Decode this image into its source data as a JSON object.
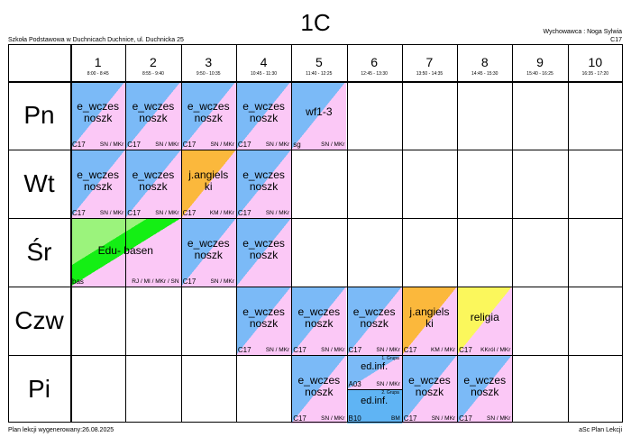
{
  "header": {
    "class_name": "1C",
    "school": "Szkoła Podstawowa w Duchnicach Duchnice, ul. Duchnicka 25",
    "teacher_label": "Wychowawca : Noga Sylwia",
    "room": "C17"
  },
  "footer": {
    "generated": "Plan lekcji wygenerowany:26.08.2025",
    "software": "aSc Plan Lekcji"
  },
  "periods": [
    {
      "num": "1",
      "time": "8:00 - 8:45"
    },
    {
      "num": "2",
      "time": "8:55 - 9:40"
    },
    {
      "num": "3",
      "time": "9:50 - 10:35"
    },
    {
      "num": "4",
      "time": "10:45 - 11:30"
    },
    {
      "num": "5",
      "time": "11:40 - 12:25"
    },
    {
      "num": "6",
      "time": "12:45 - 13:30"
    },
    {
      "num": "7",
      "time": "13:50 - 14:35"
    },
    {
      "num": "8",
      "time": "14:45 - 15:30"
    },
    {
      "num": "9",
      "time": "15:40 - 16:25"
    },
    {
      "num": "10",
      "time": "16:35 - 17:20"
    }
  ],
  "days": [
    "Pn",
    "Wt",
    "Śr",
    "Czw",
    "Pi"
  ],
  "colors": {
    "blue": "#7bbaf7",
    "pink": "#fbc8f6",
    "orange": "#fbb83c",
    "green_light": "#9bf37c",
    "green_bright": "#14ef14",
    "yellow": "#fbf75c",
    "solid_blue": "#5fb4f4"
  },
  "lessons": [
    {
      "day": 0,
      "period": 0,
      "subject": "e_wczes noszk",
      "room": "C17",
      "teachers": "SN / MKr",
      "color": "blue"
    },
    {
      "day": 0,
      "period": 1,
      "subject": "e_wczes noszk",
      "room": "C17",
      "teachers": "SN / MKr",
      "color": "blue"
    },
    {
      "day": 0,
      "period": 2,
      "subject": "e_wczes noszk",
      "room": "C17",
      "teachers": "SN / MKr",
      "color": "blue"
    },
    {
      "day": 0,
      "period": 3,
      "subject": "e_wczes noszk",
      "room": "C17",
      "teachers": "SN / MKr",
      "color": "blue"
    },
    {
      "day": 0,
      "period": 4,
      "subject": "wf1-3",
      "room": "sg",
      "teachers": "SN / MKr",
      "color": "blue"
    },
    {
      "day": 1,
      "period": 0,
      "subject": "e_wczes noszk",
      "room": "C17",
      "teachers": "SN / MKr",
      "color": "blue"
    },
    {
      "day": 1,
      "period": 1,
      "subject": "e_wczes noszk",
      "room": "C17",
      "teachers": "SN / MKr",
      "color": "blue"
    },
    {
      "day": 1,
      "period": 2,
      "subject": "j.angiels ki",
      "room": "C17",
      "teachers": "KM / MKr",
      "color": "orange"
    },
    {
      "day": 1,
      "period": 3,
      "subject": "e_wczes noszk",
      "room": "C17",
      "teachers": "SN / MKr",
      "color": "blue"
    },
    {
      "day": 2,
      "period": 0,
      "span": 2,
      "subject": "Edu- basen",
      "room": "bas",
      "teachers": "RJ / MI / MKr / SN",
      "color": "green"
    },
    {
      "day": 2,
      "period": 2,
      "subject": "e_wczes noszk",
      "room": "C17",
      "teachers": "SN / MKr",
      "color": "blue"
    },
    {
      "day": 2,
      "period": 3,
      "subject": "e_wczes noszk",
      "room": "",
      "teachers": "",
      "color": "blue"
    },
    {
      "day": 3,
      "period": 3,
      "subject": "e_wczes noszk",
      "room": "C17",
      "teachers": "SN / MKr",
      "color": "blue"
    },
    {
      "day": 3,
      "period": 4,
      "subject": "e_wczes noszk",
      "room": "C17",
      "teachers": "SN / MKr",
      "color": "blue"
    },
    {
      "day": 3,
      "period": 5,
      "subject": "e_wczes noszk",
      "room": "C17",
      "teachers": "SN / MKr",
      "color": "blue"
    },
    {
      "day": 3,
      "period": 6,
      "subject": "j.angiels ki",
      "room": "C17",
      "teachers": "KM / MKr",
      "color": "orange"
    },
    {
      "day": 3,
      "period": 7,
      "subject": "religia",
      "room": "C17",
      "teachers": "KKról / MKr",
      "color": "yellow"
    },
    {
      "day": 4,
      "period": 4,
      "subject": "e_wczes noszk",
      "room": "C17",
      "teachers": "SN / MKr",
      "color": "blue"
    },
    {
      "day": 4,
      "period": 5,
      "half": "top",
      "group": "1. Grupa",
      "subject": "ed.inf.",
      "room": "A03",
      "teachers": "SN / MKr",
      "color": "blue"
    },
    {
      "day": 4,
      "period": 5,
      "half": "bottom",
      "group": "2. Grupa",
      "subject": "ed.inf.",
      "room": "B10",
      "teachers": "BM",
      "color": "solid_blue"
    },
    {
      "day": 4,
      "period": 6,
      "subject": "e_wczes noszk",
      "room": "C17",
      "teachers": "SN / MKr",
      "color": "blue"
    },
    {
      "day": 4,
      "period": 7,
      "subject": "e_wczes noszk",
      "room": "C17",
      "teachers": "SN / MKr",
      "color": "blue"
    }
  ]
}
